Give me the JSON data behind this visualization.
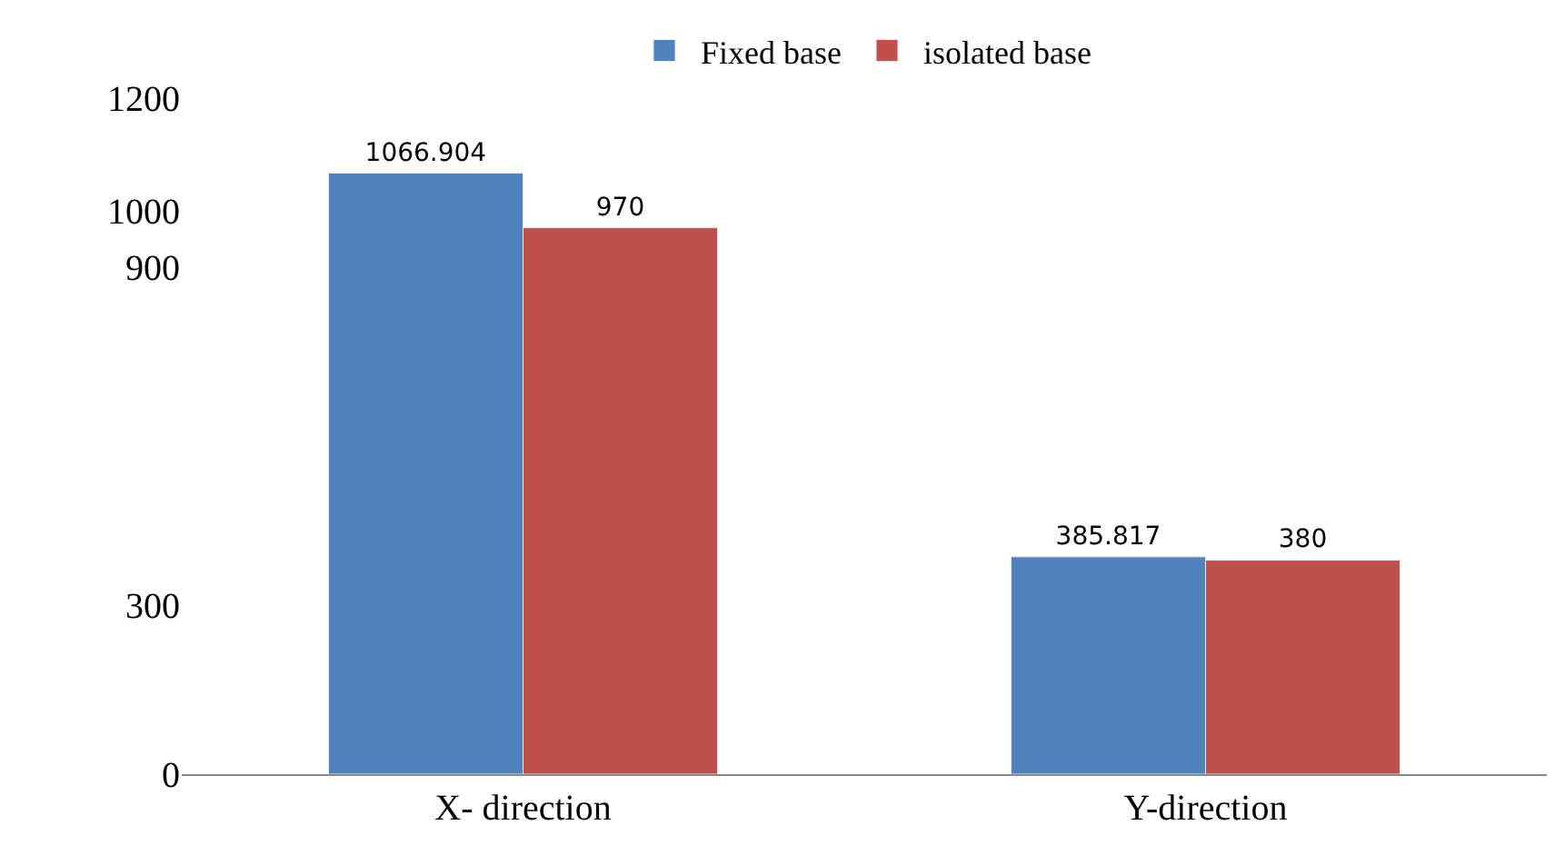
{
  "chart_data": {
    "type": "bar",
    "categories": [
      "X- direction",
      "Y-direction"
    ],
    "series": [
      {
        "name": "Fixed base",
        "color": "#4f81bd",
        "values": [
          1066.904,
          385.817
        ]
      },
      {
        "name": "isolated base",
        "color": "#c0504d",
        "values": [
          970,
          380
        ]
      }
    ],
    "data_labels": true,
    "ylim": [
      0,
      1200
    ],
    "yticks": [
      0,
      300,
      900,
      1000,
      1200
    ],
    "legend": "top"
  }
}
